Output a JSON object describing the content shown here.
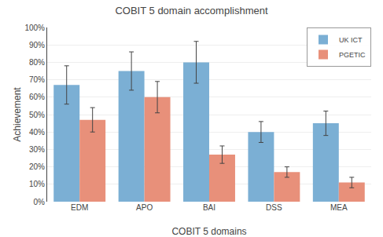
{
  "chart_data": {
    "type": "bar",
    "title": "COBIT 5 domain accomplishment",
    "xlabel": "COBIT 5 domains",
    "ylabel": "Achievement",
    "categories": [
      "EDM",
      "APO",
      "BAI",
      "DSS",
      "MEA"
    ],
    "series": [
      {
        "name": "UK ICT",
        "color": "#7BAFD4",
        "values": [
          0.67,
          0.75,
          0.8,
          0.4,
          0.45
        ],
        "errors": [
          0.11,
          0.11,
          0.12,
          0.06,
          0.07
        ]
      },
      {
        "name": "PGETIC",
        "color": "#E8907A",
        "values": [
          0.47,
          0.6,
          0.27,
          0.17,
          0.11
        ],
        "errors": [
          0.07,
          0.09,
          0.05,
          0.03,
          0.03
        ]
      }
    ],
    "ylim": [
      0,
      1.0
    ],
    "yticks": [
      {
        "value": 0.0,
        "label": "0%"
      },
      {
        "value": 0.1,
        "label": "10%"
      },
      {
        "value": 0.2,
        "label": "20%"
      },
      {
        "value": 0.3,
        "label": "30%"
      },
      {
        "value": 0.4,
        "label": "40%"
      },
      {
        "value": 0.5,
        "label": "50%"
      },
      {
        "value": 0.6,
        "label": "60%"
      },
      {
        "value": 0.7,
        "label": "70%"
      },
      {
        "value": 0.8,
        "label": "80%"
      },
      {
        "value": 0.9,
        "label": "90%"
      },
      {
        "value": 1.0,
        "label": "100%"
      }
    ],
    "grid": true,
    "legend": "upper right"
  }
}
